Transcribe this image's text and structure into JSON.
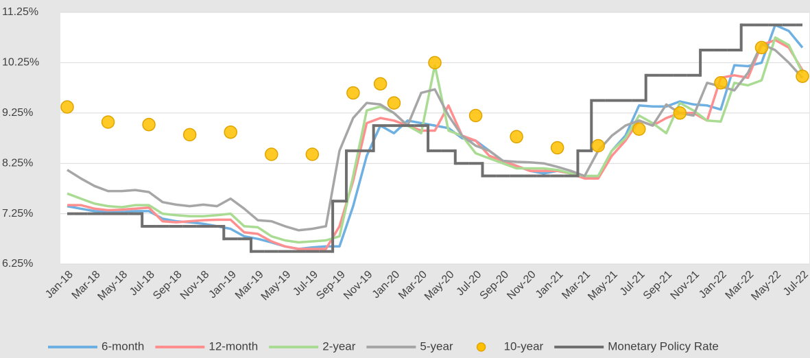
{
  "chart_data": {
    "type": "line",
    "categories": [
      "Jan-18",
      null,
      "Mar-18",
      null,
      "May-18",
      null,
      "Jul-18",
      null,
      "Sep-18",
      null,
      "Nov-18",
      null,
      "Jan-19",
      null,
      "Mar-19",
      null,
      "May-19",
      null,
      "Jul-19",
      null,
      "Sep-19",
      null,
      "Nov-19",
      null,
      "Jan-20",
      null,
      "Mar-20",
      null,
      "May-20",
      null,
      "Jul-20",
      null,
      "Sep-20",
      null,
      "Nov-20",
      null,
      "Jan-21",
      null,
      "Mar-21",
      null,
      "May-21",
      null,
      "Jul-21",
      null,
      "Sep-21",
      null,
      "Nov-21",
      null,
      "Jan-22",
      null,
      "Mar-22",
      null,
      "May-22",
      null,
      "Jul-22"
    ],
    "ylim": [
      6.25,
      11.25
    ],
    "yticks": [
      {
        "value": 6.25,
        "label": "6.25%"
      },
      {
        "value": 7.25,
        "label": "7.25%"
      },
      {
        "value": 8.25,
        "label": "8.25%"
      },
      {
        "value": 9.25,
        "label": "9.25%"
      },
      {
        "value": 10.25,
        "label": "10.25%"
      },
      {
        "value": 11.25,
        "label": "11.25%"
      }
    ],
    "grid": true,
    "legend": "bottom",
    "series": [
      {
        "name": "6-month",
        "color": "#6fb0e2",
        "mode": "line",
        "values": [
          7.4,
          7.35,
          7.3,
          7.28,
          7.28,
          7.3,
          7.3,
          7.15,
          7.1,
          7.08,
          7.05,
          7.0,
          6.95,
          6.8,
          6.75,
          6.68,
          6.6,
          6.55,
          6.58,
          6.6,
          6.6,
          7.4,
          8.4,
          9.0,
          8.85,
          9.1,
          9.05,
          9.0,
          8.95,
          8.75,
          8.7,
          8.5,
          8.3,
          8.2,
          8.1,
          8.05,
          8.1,
          8.05,
          8.0,
          8.0,
          8.5,
          8.8,
          9.4,
          9.38,
          9.38,
          9.48,
          9.42,
          9.4,
          9.32,
          10.2,
          10.18,
          10.25,
          11.0,
          10.88,
          10.55
        ]
      },
      {
        "name": "12-month",
        "color": "#ff8f8f",
        "mode": "line",
        "values": [
          7.42,
          7.42,
          7.35,
          7.32,
          7.33,
          7.35,
          7.37,
          7.1,
          7.08,
          7.1,
          7.12,
          7.13,
          7.13,
          6.88,
          6.85,
          6.7,
          6.6,
          6.55,
          6.55,
          6.55,
          7.0,
          7.9,
          9.05,
          9.15,
          9.1,
          9.0,
          8.9,
          8.9,
          9.4,
          8.8,
          8.7,
          8.4,
          8.3,
          8.2,
          8.1,
          8.1,
          8.1,
          8.05,
          7.95,
          7.95,
          8.4,
          8.7,
          9.1,
          9.0,
          9.15,
          9.25,
          9.25,
          9.1,
          9.95,
          10.0,
          9.95,
          10.6,
          10.7,
          10.55,
          10.1
        ]
      },
      {
        "name": "2-year",
        "color": "#a9dc92",
        "mode": "line",
        "values": [
          7.65,
          7.55,
          7.45,
          7.4,
          7.38,
          7.42,
          7.42,
          7.25,
          7.22,
          7.2,
          7.2,
          7.22,
          7.25,
          7.0,
          6.98,
          6.8,
          6.72,
          6.68,
          6.7,
          6.72,
          6.8,
          8.0,
          9.3,
          9.38,
          9.25,
          9.0,
          8.85,
          10.2,
          8.9,
          8.8,
          8.45,
          8.35,
          8.25,
          8.15,
          8.15,
          8.15,
          8.12,
          8.05,
          8.0,
          8.0,
          8.5,
          8.75,
          9.2,
          9.05,
          8.85,
          9.45,
          9.3,
          9.1,
          9.08,
          9.85,
          9.8,
          9.9,
          10.75,
          10.6,
          10.05
        ]
      },
      {
        "name": "5-year",
        "color": "#a6a6a6",
        "mode": "line",
        "values": [
          8.12,
          7.95,
          7.8,
          7.7,
          7.7,
          7.72,
          7.68,
          7.48,
          7.43,
          7.4,
          7.43,
          7.4,
          7.55,
          7.35,
          7.12,
          7.1,
          7.0,
          6.92,
          6.95,
          7.0,
          8.5,
          9.15,
          9.45,
          9.42,
          9.25,
          9.0,
          9.65,
          9.72,
          9.2,
          8.8,
          8.6,
          8.5,
          8.3,
          8.28,
          8.27,
          8.25,
          8.18,
          8.1,
          8.0,
          8.5,
          8.8,
          9.0,
          9.1,
          9.0,
          9.42,
          9.25,
          9.2,
          9.85,
          9.78,
          9.7,
          10.05,
          10.62,
          10.5,
          10.25,
          9.95
        ]
      },
      {
        "name": "10-year",
        "color": "#ffc000",
        "mode": "markers",
        "values": [
          9.37,
          null,
          null,
          9.07,
          null,
          null,
          9.02,
          null,
          null,
          8.82,
          null,
          null,
          8.87,
          null,
          null,
          8.43,
          null,
          null,
          8.43,
          null,
          null,
          9.65,
          null,
          9.83,
          9.45,
          null,
          null,
          10.25,
          null,
          null,
          9.2,
          null,
          null,
          8.78,
          null,
          null,
          8.56,
          null,
          null,
          8.6,
          null,
          null,
          8.93,
          null,
          null,
          9.25,
          null,
          null,
          9.85,
          null,
          null,
          10.55,
          null,
          null,
          9.98
        ]
      },
      {
        "name": "Monetary Policy Rate",
        "color": "#6f6f6f",
        "mode": "step",
        "values": [
          7.25,
          7.25,
          7.25,
          7.25,
          7.25,
          7.25,
          7.0,
          7.0,
          7.0,
          7.0,
          7.0,
          7.0,
          6.75,
          6.75,
          6.5,
          6.5,
          6.5,
          6.5,
          6.5,
          6.5,
          7.5,
          8.5,
          8.5,
          9.0,
          9.0,
          9.0,
          9.0,
          8.5,
          8.5,
          8.25,
          8.25,
          8.0,
          8.0,
          8.0,
          8.0,
          8.0,
          8.0,
          8.0,
          8.5,
          9.5,
          9.5,
          9.5,
          9.5,
          10.0,
          10.0,
          10.0,
          10.0,
          10.5,
          10.5,
          10.5,
          11.0,
          11.0,
          11.0,
          11.0,
          11.0
        ]
      }
    ]
  }
}
